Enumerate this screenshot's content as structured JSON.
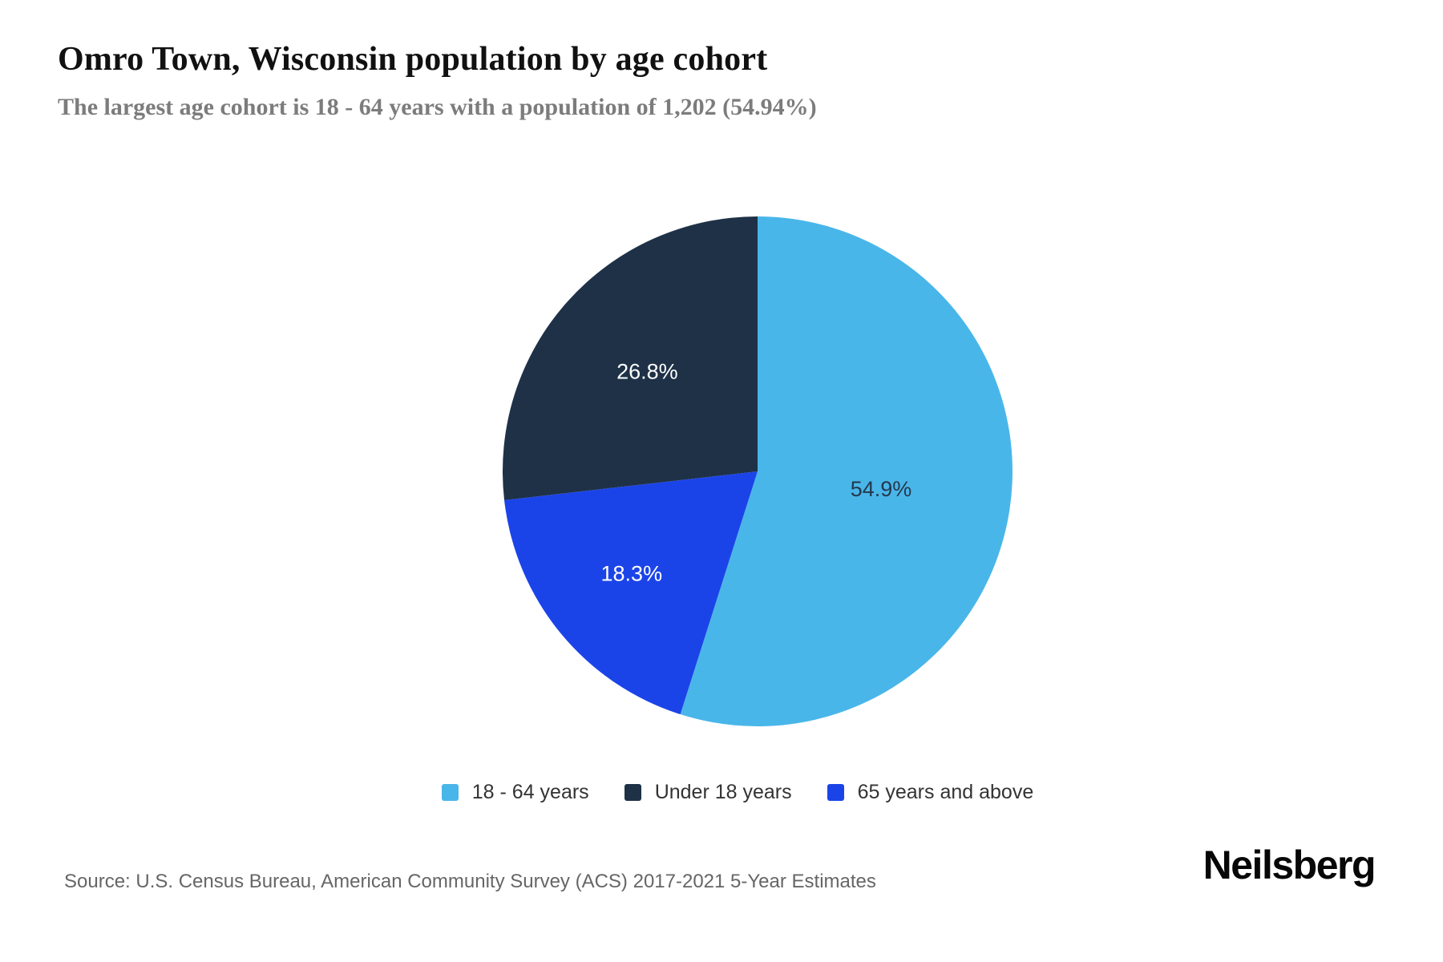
{
  "header": {
    "title": "Omro Town, Wisconsin population by age cohort",
    "subtitle": "The largest age cohort is 18 - 64 years with a population of 1,202 (54.94%)"
  },
  "chart_data": {
    "type": "pie",
    "title": "Omro Town, Wisconsin population by age cohort",
    "start_angle": "top",
    "direction": "clockwise",
    "legend_position": "bottom",
    "largest_cohort": {
      "name": "18 - 64 years",
      "population": "1,202",
      "share_display": "54.94%"
    },
    "series": [
      {
        "name": "18 - 64 years",
        "value_pct": 54.9,
        "color": "#49b6e9",
        "data_label": "54.9%",
        "data_label_color": "#25384d"
      },
      {
        "name": "Under 18 years",
        "value_pct": 26.8,
        "color": "#1e3147",
        "data_label": "26.8%",
        "data_label_color": "#ffffff"
      },
      {
        "name": "65 years and above",
        "value_pct": 18.3,
        "color": "#1b44e8",
        "data_label": "18.3%",
        "data_label_color": "#ffffff"
      }
    ]
  },
  "footer": {
    "source": "Source: U.S. Census Bureau, American Community Survey (ACS) 2017-2021 5-Year Estimates",
    "brand": "Neilsberg"
  }
}
